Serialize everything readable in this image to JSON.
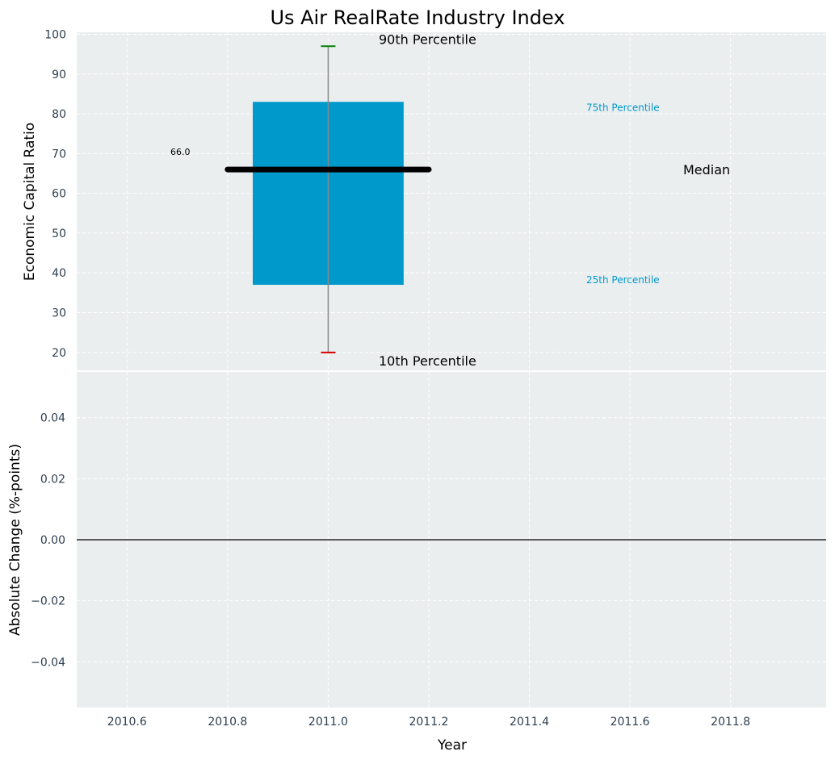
{
  "colors": {
    "background": "#eaeeef",
    "grid": "#ffffff",
    "box": "#0099cc",
    "median": "#000000",
    "whisker": "#888888",
    "cap_high": "#008000",
    "cap_low": "#dd0000",
    "tick_label": "#2d3e50",
    "axis_label": "#222222",
    "zero_line": "#000000"
  },
  "chart_data": [
    {
      "type": "box",
      "title": "Us Air RealRate Industry Index",
      "ylabel": "Economic Capital Ratio",
      "xlabel": "",
      "xlim": [
        2010.5,
        2011.99
      ],
      "ylim": [
        15.5,
        100.5
      ],
      "yticks": [
        20,
        30,
        40,
        50,
        60,
        70,
        80,
        90,
        100
      ],
      "grid": true,
      "year": 2011.0,
      "box_width": 0.3,
      "median_span": [
        2010.8,
        2011.2
      ],
      "p10": 20,
      "p25": 37,
      "median": 66,
      "p75": 83,
      "p90": 97,
      "median_value_label": "66.0",
      "annotations": {
        "p90": "90th Percentile",
        "p75": "75th Percentile",
        "median": "Median",
        "p25": "25th Percentile",
        "p10": "10th Percentile"
      }
    },
    {
      "type": "line",
      "title": "",
      "ylabel": "Absolute Change (%-points)",
      "xlabel": "Year",
      "xlim": [
        2010.5,
        2011.99
      ],
      "ylim": [
        -0.055,
        0.055
      ],
      "yticks": [
        -0.04,
        -0.02,
        0.0,
        0.02,
        0.04
      ],
      "ytick_labels": [
        "−0.04",
        "−0.02",
        "0.00",
        "0.02",
        "0.04"
      ],
      "xticks": [
        2010.6,
        2010.8,
        2011.0,
        2011.2,
        2011.4,
        2011.6,
        2011.8
      ],
      "xtick_labels": [
        "2010.6",
        "2010.8",
        "2011.0",
        "2011.2",
        "2011.4",
        "2011.6",
        "2011.8"
      ],
      "grid": true,
      "reference_line": 0.0,
      "series": []
    }
  ]
}
